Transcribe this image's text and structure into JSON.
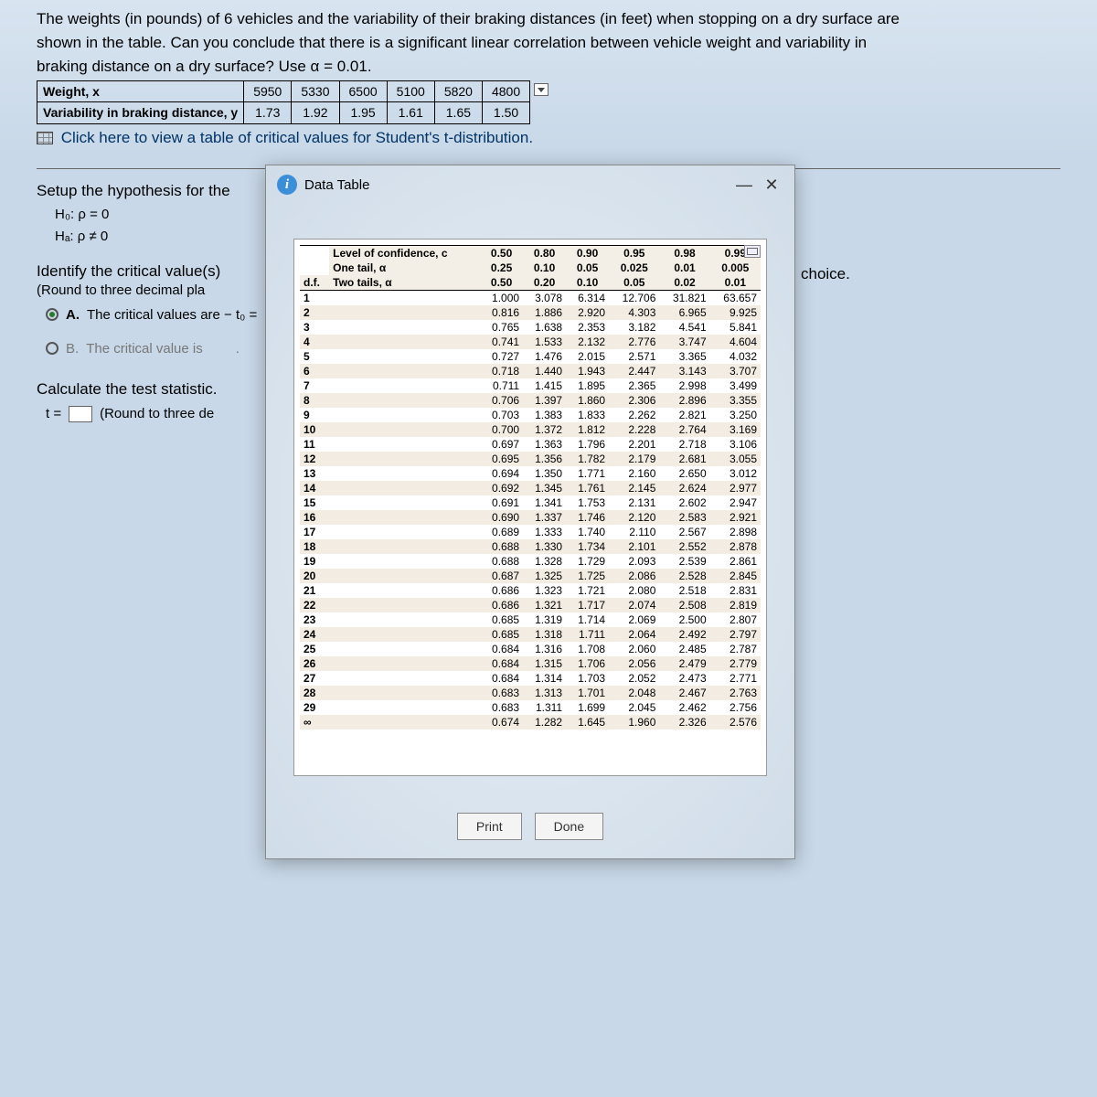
{
  "problem": {
    "text_line1": "The weights (in pounds) of 6 vehicles and the variability of their braking distances (in feet) when stopping on a dry surface are",
    "text_line2": "shown in the table. Can you conclude that there is a significant linear correlation between vehicle weight and variability in",
    "text_line3": "braking distance on a dry surface? Use α = 0.01.",
    "row_labels": {
      "x": "Weight, x",
      "y": "Variability in braking distance, y"
    },
    "x_values": [
      "5950",
      "5330",
      "6500",
      "5100",
      "5820",
      "4800"
    ],
    "y_values": [
      "1.73",
      "1.92",
      "1.95",
      "1.61",
      "1.65",
      "1.50"
    ],
    "link": "Click here to view a table of critical values for Student's t-distribution."
  },
  "sections": {
    "setup": "Setup the hypothesis for the",
    "h0": "H₀: ρ  =  0",
    "ha": "Hₐ: ρ  ≠  0",
    "identify": "Identify the critical value(s)",
    "round_note": "(Round to three decimal pla",
    "opt_a": "The critical values are − t₀ =",
    "opt_b": "The critical value is",
    "calc": "Calculate the test statistic.",
    "tstat": "(Round to three de",
    "t_label": "t =",
    "choice": "choice.",
    "a_label": "A.",
    "b_label": "B."
  },
  "modal": {
    "title": "Data Table",
    "print": "Print",
    "done": "Done"
  },
  "t_table": {
    "header_label": "Level of confidence, c",
    "one_tail": "One tail, α",
    "two_tail": "Two tails, α",
    "df_label": "d.f.",
    "conf_levels": [
      "0.50",
      "0.80",
      "0.90",
      "0.95",
      "0.98",
      "0.99"
    ],
    "one_tail_vals": [
      "0.25",
      "0.10",
      "0.05",
      "0.025",
      "0.01",
      "0.005"
    ],
    "two_tail_vals": [
      "0.50",
      "0.20",
      "0.10",
      "0.05",
      "0.02",
      "0.01"
    ],
    "rows": [
      {
        "df": "1",
        "v": [
          "1.000",
          "3.078",
          "6.314",
          "12.706",
          "31.821",
          "63.657"
        ]
      },
      {
        "df": "2",
        "v": [
          "0.816",
          "1.886",
          "2.920",
          "4.303",
          "6.965",
          "9.925"
        ]
      },
      {
        "df": "3",
        "v": [
          "0.765",
          "1.638",
          "2.353",
          "3.182",
          "4.541",
          "5.841"
        ]
      },
      {
        "df": "4",
        "v": [
          "0.741",
          "1.533",
          "2.132",
          "2.776",
          "3.747",
          "4.604"
        ]
      },
      {
        "df": "5",
        "v": [
          "0.727",
          "1.476",
          "2.015",
          "2.571",
          "3.365",
          "4.032"
        ]
      },
      {
        "df": "6",
        "v": [
          "0.718",
          "1.440",
          "1.943",
          "2.447",
          "3.143",
          "3.707"
        ]
      },
      {
        "df": "7",
        "v": [
          "0.711",
          "1.415",
          "1.895",
          "2.365",
          "2.998",
          "3.499"
        ]
      },
      {
        "df": "8",
        "v": [
          "0.706",
          "1.397",
          "1.860",
          "2.306",
          "2.896",
          "3.355"
        ]
      },
      {
        "df": "9",
        "v": [
          "0.703",
          "1.383",
          "1.833",
          "2.262",
          "2.821",
          "3.250"
        ]
      },
      {
        "df": "10",
        "v": [
          "0.700",
          "1.372",
          "1.812",
          "2.228",
          "2.764",
          "3.169"
        ]
      },
      {
        "df": "11",
        "v": [
          "0.697",
          "1.363",
          "1.796",
          "2.201",
          "2.718",
          "3.106"
        ]
      },
      {
        "df": "12",
        "v": [
          "0.695",
          "1.356",
          "1.782",
          "2.179",
          "2.681",
          "3.055"
        ]
      },
      {
        "df": "13",
        "v": [
          "0.694",
          "1.350",
          "1.771",
          "2.160",
          "2.650",
          "3.012"
        ]
      },
      {
        "df": "14",
        "v": [
          "0.692",
          "1.345",
          "1.761",
          "2.145",
          "2.624",
          "2.977"
        ]
      },
      {
        "df": "15",
        "v": [
          "0.691",
          "1.341",
          "1.753",
          "2.131",
          "2.602",
          "2.947"
        ]
      },
      {
        "df": "16",
        "v": [
          "0.690",
          "1.337",
          "1.746",
          "2.120",
          "2.583",
          "2.921"
        ]
      },
      {
        "df": "17",
        "v": [
          "0.689",
          "1.333",
          "1.740",
          "2.110",
          "2.567",
          "2.898"
        ]
      },
      {
        "df": "18",
        "v": [
          "0.688",
          "1.330",
          "1.734",
          "2.101",
          "2.552",
          "2.878"
        ]
      },
      {
        "df": "19",
        "v": [
          "0.688",
          "1.328",
          "1.729",
          "2.093",
          "2.539",
          "2.861"
        ]
      },
      {
        "df": "20",
        "v": [
          "0.687",
          "1.325",
          "1.725",
          "2.086",
          "2.528",
          "2.845"
        ]
      },
      {
        "df": "21",
        "v": [
          "0.686",
          "1.323",
          "1.721",
          "2.080",
          "2.518",
          "2.831"
        ]
      },
      {
        "df": "22",
        "v": [
          "0.686",
          "1.321",
          "1.717",
          "2.074",
          "2.508",
          "2.819"
        ]
      },
      {
        "df": "23",
        "v": [
          "0.685",
          "1.319",
          "1.714",
          "2.069",
          "2.500",
          "2.807"
        ]
      },
      {
        "df": "24",
        "v": [
          "0.685",
          "1.318",
          "1.711",
          "2.064",
          "2.492",
          "2.797"
        ]
      },
      {
        "df": "25",
        "v": [
          "0.684",
          "1.316",
          "1.708",
          "2.060",
          "2.485",
          "2.787"
        ]
      },
      {
        "df": "26",
        "v": [
          "0.684",
          "1.315",
          "1.706",
          "2.056",
          "2.479",
          "2.779"
        ]
      },
      {
        "df": "27",
        "v": [
          "0.684",
          "1.314",
          "1.703",
          "2.052",
          "2.473",
          "2.771"
        ]
      },
      {
        "df": "28",
        "v": [
          "0.683",
          "1.313",
          "1.701",
          "2.048",
          "2.467",
          "2.763"
        ]
      },
      {
        "df": "29",
        "v": [
          "0.683",
          "1.311",
          "1.699",
          "2.045",
          "2.462",
          "2.756"
        ]
      },
      {
        "df": "∞",
        "v": [
          "0.674",
          "1.282",
          "1.645",
          "1.960",
          "2.326",
          "2.576"
        ]
      }
    ]
  },
  "colors": {
    "bg": "#c8d8e8",
    "modal_bg": "#e0e8f0",
    "shade": "#f2ece2",
    "accent": "#3b8ed8"
  }
}
